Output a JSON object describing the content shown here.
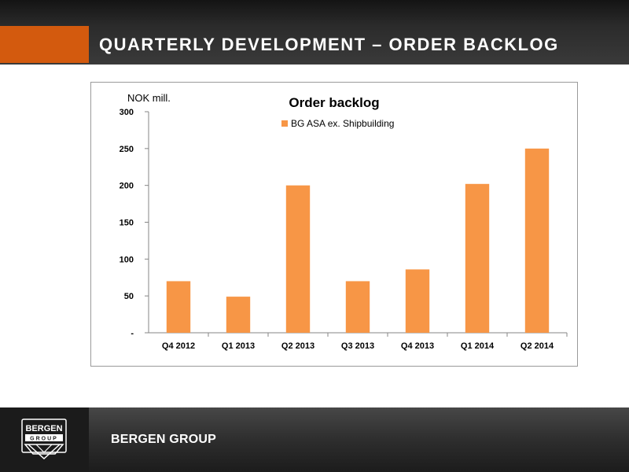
{
  "header": {
    "title": "QUARTERLY DEVELOPMENT – ORDER BACKLOG"
  },
  "footer": {
    "company_name": "BERGEN GROUP",
    "logo_text_top": "BERGEN",
    "logo_text_bottom": "GROUP"
  },
  "chart_data": {
    "type": "bar",
    "title": "Order backlog",
    "ylabel": "NOK mill.",
    "xlabel": "",
    "categories": [
      "Q4 2012",
      "Q1 2013",
      "Q2 2013",
      "Q3 2013",
      "Q4 2013",
      "Q1 2014",
      "Q2 2014"
    ],
    "series": [
      {
        "name": "BG ASA ex. Shipbuilding",
        "values": [
          70,
          49,
          200,
          70,
          86,
          202,
          250
        ],
        "color": "#f79646"
      }
    ],
    "ylim": [
      0,
      300
    ],
    "yticks": [
      0,
      50,
      100,
      150,
      200,
      250,
      300
    ],
    "ytick_labels": [
      "-",
      "50",
      "100",
      "150",
      "200",
      "250",
      "300"
    ],
    "grid": false,
    "legend": "top-center"
  },
  "colors": {
    "accent": "#d35a0e",
    "bar": "#f79646"
  }
}
